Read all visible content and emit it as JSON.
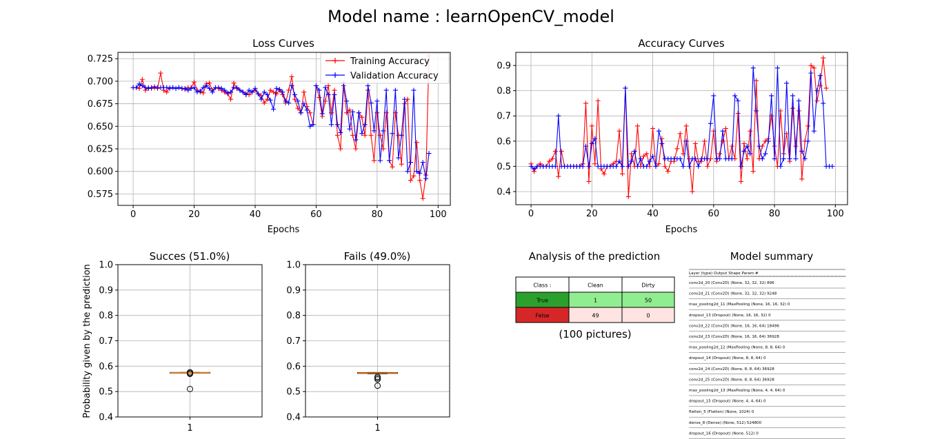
{
  "figure_title": "Model name : learnOpenCV_model",
  "chart_data": [
    {
      "id": "loss",
      "type": "line",
      "title": "Loss Curves",
      "xlabel": "Epochs",
      "ylabel": "",
      "xlim": [
        -5,
        104
      ],
      "ylim": [
        0.5623,
        0.732
      ],
      "xticks": [
        0,
        20,
        40,
        60,
        80,
        100
      ],
      "yticks": [
        0.575,
        0.6,
        0.625,
        0.65,
        0.675,
        0.7,
        0.725
      ],
      "ytick_labels": [
        "0.575",
        "0.600",
        "0.625",
        "0.650",
        "0.675",
        "0.700",
        "0.725"
      ],
      "grid": true,
      "legend": "top-right",
      "series": [
        {
          "name": "Training Accuracy",
          "color": "#ff0000",
          "marker": "+",
          "values": [
            0.693,
            0.693,
            0.692,
            0.702,
            0.69,
            0.693,
            0.692,
            0.694,
            0.692,
            0.709,
            0.69,
            0.688,
            0.693,
            0.693,
            0.692,
            0.693,
            0.692,
            0.691,
            0.693,
            0.693,
            0.699,
            0.69,
            0.688,
            0.687,
            0.697,
            0.698,
            0.69,
            0.693,
            0.692,
            0.69,
            0.688,
            0.686,
            0.68,
            0.698,
            0.692,
            0.69,
            0.688,
            0.686,
            0.685,
            0.688,
            0.69,
            0.686,
            0.684,
            0.676,
            0.68,
            0.69,
            0.688,
            0.686,
            0.69,
            0.685,
            0.676,
            0.69,
            0.705,
            0.68,
            0.67,
            0.665,
            0.688,
            0.672,
            0.665,
            0.652,
            0.695,
            0.682,
            0.661,
            0.678,
            0.695,
            0.665,
            0.69,
            0.64,
            0.625,
            0.695,
            0.665,
            0.668,
            0.64,
            0.625,
            0.665,
            0.66,
            0.64,
            0.69,
            0.64,
            0.612,
            0.665,
            0.64,
            0.625,
            0.665,
            0.612,
            0.605,
            0.665,
            0.64,
            0.608,
            0.675,
            0.68,
            0.59,
            0.595,
            0.632,
            0.59,
            0.57,
            0.596,
            0.728
          ]
        },
        {
          "name": "Validation Accuracy",
          "color": "#0000ff",
          "marker": "+",
          "values": [
            0.693,
            0.693,
            0.697,
            0.695,
            0.693,
            0.692,
            0.693,
            0.693,
            0.693,
            0.693,
            0.693,
            0.693,
            0.692,
            0.693,
            0.692,
            0.693,
            0.692,
            0.692,
            0.69,
            0.692,
            0.693,
            0.688,
            0.689,
            0.693,
            0.695,
            0.692,
            0.688,
            0.693,
            0.693,
            0.692,
            0.69,
            0.687,
            0.688,
            0.693,
            0.693,
            0.69,
            0.688,
            0.685,
            0.69,
            0.688,
            0.692,
            0.686,
            0.68,
            0.688,
            0.685,
            0.679,
            0.669,
            0.692,
            0.691,
            0.688,
            0.678,
            0.676,
            0.695,
            0.685,
            0.678,
            0.665,
            0.675,
            0.668,
            0.65,
            0.652,
            0.695,
            0.69,
            0.664,
            0.693,
            0.685,
            0.652,
            0.685,
            0.652,
            0.643,
            0.698,
            0.678,
            0.647,
            0.666,
            0.635,
            0.665,
            0.642,
            0.652,
            0.695,
            0.676,
            0.645,
            0.678,
            0.612,
            0.645,
            0.69,
            0.612,
            0.642,
            0.69,
            0.615,
            0.64,
            0.68,
            0.6,
            0.61,
            0.69,
            0.6,
            0.598,
            0.61,
            0.592,
            0.62
          ]
        }
      ]
    },
    {
      "id": "accuracy",
      "type": "line",
      "title": "Accuracy Curves",
      "xlabel": "Epochs",
      "ylabel": "",
      "xlim": [
        -5,
        104
      ],
      "ylim": [
        0.348,
        0.952
      ],
      "xticks": [
        0,
        20,
        40,
        60,
        80,
        100
      ],
      "yticks": [
        0.4,
        0.5,
        0.6,
        0.7,
        0.8,
        0.9
      ],
      "ytick_labels": [
        "0.4",
        "0.5",
        "0.6",
        "0.7",
        "0.8",
        "0.9"
      ],
      "grid": true,
      "series": [
        {
          "name": "",
          "color": "#ff0000",
          "marker": "+",
          "values": [
            0.51,
            0.48,
            0.5,
            0.51,
            0.5,
            0.5,
            0.52,
            0.53,
            0.56,
            0.46,
            0.56,
            0.5,
            0.5,
            0.5,
            0.5,
            0.5,
            0.5,
            0.51,
            0.75,
            0.44,
            0.66,
            0.51,
            0.76,
            0.49,
            0.47,
            0.5,
            0.5,
            0.51,
            0.52,
            0.64,
            0.47,
            0.81,
            0.38,
            0.55,
            0.5,
            0.66,
            0.5,
            0.54,
            0.55,
            0.5,
            0.65,
            0.5,
            0.51,
            0.61,
            0.5,
            0.48,
            0.52,
            0.52,
            0.57,
            0.63,
            0.55,
            0.66,
            0.53,
            0.4,
            0.59,
            0.52,
            0.52,
            0.6,
            0.5,
            0.53,
            0.64,
            0.52,
            0.55,
            0.6,
            0.65,
            0.53,
            0.58,
            0.53,
            0.71,
            0.44,
            0.59,
            0.53,
            0.64,
            0.48,
            0.84,
            0.53,
            0.58,
            0.6,
            0.61,
            0.7,
            0.58,
            0.5,
            0.72,
            0.55,
            0.63,
            0.52,
            0.73,
            0.58,
            0.72,
            0.45,
            0.6,
            0.66,
            0.9,
            0.89,
            0.76,
            0.82,
            0.93,
            0.81
          ]
        },
        {
          "name": "",
          "color": "#0000ff",
          "marker": "+",
          "values": [
            0.5,
            0.49,
            0.5,
            0.5,
            0.5,
            0.5,
            0.5,
            0.5,
            0.5,
            0.7,
            0.5,
            0.5,
            0.5,
            0.5,
            0.5,
            0.5,
            0.5,
            0.5,
            0.58,
            0.5,
            0.59,
            0.61,
            0.5,
            0.5,
            0.5,
            0.5,
            0.5,
            0.5,
            0.5,
            0.52,
            0.5,
            0.81,
            0.5,
            0.52,
            0.56,
            0.5,
            0.53,
            0.5,
            0.5,
            0.52,
            0.54,
            0.5,
            0.64,
            0.59,
            0.53,
            0.53,
            0.53,
            0.53,
            0.53,
            0.53,
            0.5,
            0.6,
            0.5,
            0.53,
            0.53,
            0.5,
            0.53,
            0.53,
            0.53,
            0.67,
            0.78,
            0.53,
            0.53,
            0.64,
            0.53,
            0.53,
            0.53,
            0.78,
            0.76,
            0.5,
            0.56,
            0.58,
            0.55,
            0.89,
            0.72,
            0.58,
            0.53,
            0.55,
            0.6,
            0.78,
            0.53,
            0.89,
            0.5,
            0.53,
            0.83,
            0.53,
            0.78,
            0.53,
            0.76,
            0.56,
            0.53,
            0.6,
            0.87,
            0.64,
            0.8,
            0.86,
            0.75,
            0.5,
            0.5,
            0.5
          ]
        }
      ]
    },
    {
      "id": "success",
      "type": "box",
      "title": "Succes (51.0%)",
      "xlabel": "",
      "ylabel": "Probability given by the prediction",
      "ylim": [
        0.4,
        1.0
      ],
      "yticks": [
        0.4,
        0.5,
        0.6,
        0.7,
        0.8,
        0.9,
        1.0
      ],
      "ytick_labels": [
        "0.4",
        "0.5",
        "0.6",
        "0.7",
        "0.8",
        "0.9",
        "1.0"
      ],
      "xticks": [
        1
      ],
      "xtick_labels": [
        "1"
      ],
      "grid": true,
      "box": {
        "q1": 0.5735,
        "median": 0.5745,
        "q3": 0.5755,
        "whisker_low": 0.5735,
        "whisker_high": 0.5755,
        "fliers": [
          0.576,
          0.572,
          0.57,
          0.51
        ]
      }
    },
    {
      "id": "fails",
      "type": "box",
      "title": "Fails (49.0%)",
      "xlabel": "",
      "ylabel": "",
      "ylim": [
        0.4,
        1.0
      ],
      "yticks": [
        0.4,
        0.5,
        0.6,
        0.7,
        0.8,
        0.9,
        1.0
      ],
      "ytick_labels": [
        "0.4",
        "0.5",
        "0.6",
        "0.7",
        "0.8",
        "0.9",
        "1.0"
      ],
      "xticks": [
        1
      ],
      "xtick_labels": [
        "1"
      ],
      "grid": true,
      "box": {
        "q1": 0.5715,
        "median": 0.5735,
        "q3": 0.575,
        "whisker_low": 0.5705,
        "whisker_high": 0.5755,
        "fliers": [
          0.558,
          0.553,
          0.548,
          0.523
        ]
      }
    }
  ],
  "colors": {
    "training": "#ff0000",
    "validation": "#0000ff",
    "median": "#ff7f0e",
    "true_row": "#2ca02c",
    "false_row": "#d62728",
    "true_cells": "#90ee90",
    "false_cells": "#ffe4e1"
  },
  "analysis": {
    "title": "Analysis of the prediction",
    "header": [
      "Class :",
      "Clean",
      "Dirty"
    ],
    "rows": [
      [
        "True",
        "1",
        "50"
      ],
      [
        "False",
        "49",
        "0"
      ]
    ],
    "caption": "(100 pictures)"
  },
  "summary": {
    "title": "Model summary",
    "header": "Layer (type)                 Output Shape              Param #",
    "rows": [
      "conv2d_20 (Conv2D)           (None, 32, 32, 32)        896",
      "conv2d_21 (Conv2D)           (None, 32, 32, 32)        9248",
      "max_pooling2d_11 (MaxPooling (None, 16, 16, 32)        0",
      "dropout_13 (Dropout)         (None, 16, 16, 32)        0",
      "conv2d_22 (Conv2D)           (None, 16, 16, 64)        18496",
      "conv2d_23 (Conv2D)           (None, 16, 16, 64)        36928",
      "max_pooling2d_12 (MaxPooling (None, 8, 8, 64)          0",
      "dropout_14 (Dropout)         (None, 8, 8, 64)          0",
      "conv2d_24 (Conv2D)           (None, 8, 8, 64)          36928",
      "conv2d_25 (Conv2D)           (None, 8, 8, 64)          36928",
      "max_pooling2d_13 (MaxPooling (None, 4, 4, 64)          0",
      "dropout_15 (Dropout)         (None, 4, 4, 64)          0",
      "flatten_5 (Flatten)          (None, 1024)              0",
      "dense_8 (Dense)              (None, 512)               524800",
      "dropout_16 (Dropout)         (None, 512)               0"
    ]
  }
}
